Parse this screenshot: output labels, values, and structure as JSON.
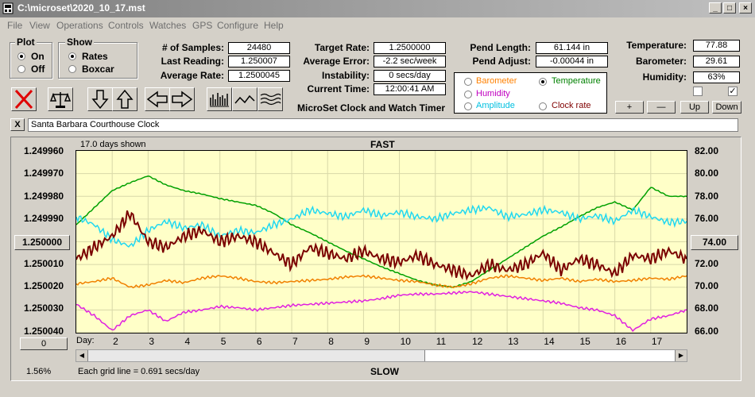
{
  "window": {
    "title": "C:\\microset\\2020_10_17.mst"
  },
  "menu": [
    "File",
    "View",
    "Operations",
    "Controls",
    "Watches",
    "GPS",
    "Configure",
    "Help"
  ],
  "plot_group": {
    "title": "Plot",
    "options": [
      {
        "label": "On",
        "selected": true
      },
      {
        "label": "Off",
        "selected": false
      }
    ]
  },
  "show_group": {
    "title": "Show",
    "options": [
      {
        "label": "Rates",
        "selected": true
      },
      {
        "label": "Boxcar",
        "selected": false
      }
    ]
  },
  "stats": {
    "samples_label": "# of Samples:",
    "samples": "24480",
    "last_reading_label": "Last Reading:",
    "last_reading": "1.250007",
    "average_rate_label": "Average Rate:",
    "average_rate": "1.2500045",
    "target_rate_label": "Target Rate:",
    "target_rate": "1.2500000",
    "average_error_label": "Average Error:",
    "average_error": "-2.2 sec/week",
    "instability_label": "Instability:",
    "instability": "0 secs/day",
    "current_time_label": "Current Time:",
    "current_time": "12:00:41 AM",
    "pend_length_label": "Pend Length:",
    "pend_length": "61.144 in",
    "pend_adjust_label": "Pend Adjust:",
    "pend_adjust": "-0.00044 in",
    "temperature_label": "Temperature:",
    "temperature": "77.88",
    "barometer_label": "Barometer:",
    "barometer": "29.61",
    "humidity_label": "Humidity:",
    "humidity": "63%"
  },
  "app_caption": "MicroSet Clock and Watch Timer",
  "overlay_options": [
    {
      "label": "Barometer",
      "color": "#ff8000",
      "selected": false
    },
    {
      "label": "Temperature",
      "color": "#008000",
      "selected": true
    },
    {
      "label": "Humidity",
      "color": "#c000c0",
      "selected": false
    },
    {
      "label": "Amplitude",
      "color": "#00c0e0",
      "selected": false
    },
    {
      "label": "Clock rate",
      "color": "#800000",
      "selected": false
    }
  ],
  "scale_buttons": {
    "plus": "+",
    "minus": "—",
    "up": "Up",
    "down": "Down"
  },
  "clock_name": "Santa Barbara Courthouse Clock",
  "close_x": "X",
  "chart_header": {
    "days_shown": "17.0 days shown",
    "fast": "FAST",
    "slow": "SLOW",
    "day_label": "Day:",
    "grid_note": "Each grid line = 0.691 secs/day"
  },
  "left_center_button": "1.250000",
  "right_center_button": "74.00",
  "zero_button": "0",
  "percent": "1.56%",
  "chart_data": {
    "type": "line",
    "y_left_ticks": [
      "1.249960",
      "1.249970",
      "1.249980",
      "1.249990",
      "1.250000",
      "1.250010",
      "1.250020",
      "1.250030",
      "1.250040"
    ],
    "y_right_ticks": [
      "82.00",
      "80.00",
      "78.00",
      "76.00",
      "74.00",
      "72.00",
      "70.00",
      "68.00",
      "66.00"
    ],
    "x_ticks": [
      "2",
      "3",
      "4",
      "5",
      "6",
      "7",
      "8",
      "9",
      "10",
      "11",
      "12",
      "13",
      "14",
      "15",
      "16",
      "17"
    ],
    "xlim": [
      1,
      18
    ],
    "y_left_range": [
      1.24996,
      1.25004
    ],
    "y_right_range": [
      66,
      82
    ],
    "grid": true,
    "series": [
      {
        "name": "Temperature",
        "color": "#00a000",
        "x": [
          1,
          1.5,
          2,
          2.5,
          3,
          3.5,
          4,
          4.5,
          5,
          5.5,
          6,
          6.5,
          7,
          7.5,
          8,
          8.5,
          9,
          9.5,
          10,
          10.5,
          11,
          11.5,
          12,
          12.5,
          13,
          13.5,
          14,
          14.5,
          15,
          15.5,
          16,
          16.5,
          17,
          17.5,
          18
        ],
        "y": [
          75.5,
          77,
          78.5,
          79.2,
          79.8,
          79.0,
          78.5,
          78.2,
          77.8,
          77.5,
          77.2,
          76.5,
          75.5,
          74.8,
          74.0,
          73.2,
          72.5,
          71.8,
          71.2,
          70.6,
          70.2,
          70.0,
          70.5,
          71.5,
          72.5,
          73.5,
          74.5,
          75.3,
          76.2,
          77.0,
          77.5,
          76.8,
          78.8,
          78.0,
          78.0
        ]
      },
      {
        "name": "Amplitude",
        "color": "#20d8f0",
        "x": [
          1,
          1.5,
          2,
          2.5,
          3,
          3.5,
          4,
          4.5,
          5,
          5.5,
          6,
          6.5,
          7,
          7.5,
          8,
          8.5,
          9,
          9.5,
          10,
          10.5,
          11,
          11.5,
          12,
          12.5,
          13,
          13.5,
          14,
          14.5,
          15,
          15.5,
          16,
          16.5,
          17,
          17.5,
          18
        ],
        "y": [
          76.2,
          75.5,
          74.2,
          73.6,
          75.0,
          75.8,
          75.2,
          75.5,
          74.5,
          75.0,
          74.8,
          75.5,
          76.0,
          76.8,
          76.5,
          76.2,
          76.8,
          76.3,
          76.6,
          76.2,
          76.0,
          76.5,
          76.8,
          77.0,
          76.2,
          76.4,
          76.8,
          76.6,
          76.0,
          76.3,
          75.8,
          76.8,
          76.2,
          75.7,
          75.8
        ]
      },
      {
        "name": "Clock rate",
        "color": "#7a0000",
        "x": [
          1,
          1.5,
          2,
          2.5,
          3,
          3.5,
          4,
          4.5,
          5,
          5.5,
          6,
          6.5,
          7,
          7.5,
          8,
          8.5,
          9,
          9.5,
          10,
          10.5,
          11,
          11.5,
          12,
          12.5,
          13,
          13.5,
          14,
          14.5,
          15,
          15.5,
          16,
          16.5,
          17,
          17.5,
          18
        ],
        "y": [
          72.5,
          73.5,
          74.5,
          76.5,
          74.0,
          73.5,
          74.5,
          75.0,
          74.0,
          74.5,
          74.0,
          73.0,
          72.0,
          73.5,
          73.0,
          72.5,
          73.2,
          72.5,
          72.2,
          72.8,
          72.0,
          71.5,
          71.0,
          72.0,
          71.5,
          72.0,
          73.0,
          71.5,
          72.5,
          72.0,
          71.2,
          72.8,
          72.5,
          73.2,
          72.5
        ]
      },
      {
        "name": "Barometer",
        "color": "#f08000",
        "x": [
          1,
          1.5,
          2,
          2.5,
          3,
          3.5,
          4,
          4.5,
          5,
          5.5,
          6,
          6.5,
          7,
          7.5,
          8,
          8.5,
          9,
          9.5,
          10,
          10.5,
          11,
          11.5,
          12,
          12.5,
          13,
          13.5,
          14,
          14.5,
          15,
          15.5,
          16,
          16.5,
          17,
          17.5,
          18
        ],
        "y": [
          70.3,
          70.5,
          70.8,
          70.0,
          70.2,
          70.6,
          70.4,
          70.8,
          71.0,
          70.8,
          70.5,
          70.4,
          70.5,
          70.6,
          70.7,
          70.9,
          71.0,
          70.8,
          70.6,
          70.5,
          70.2,
          70.0,
          70.3,
          70.8,
          71.0,
          70.8,
          70.6,
          70.8,
          70.5,
          70.7,
          70.5,
          70.6,
          70.8,
          70.7,
          71.0
        ]
      },
      {
        "name": "Humidity",
        "color": "#e020e0",
        "x": [
          1,
          1.5,
          2,
          2.5,
          3,
          3.5,
          4,
          4.5,
          5,
          5.5,
          6,
          6.5,
          7,
          7.5,
          8,
          8.5,
          9,
          9.5,
          10,
          10.5,
          11,
          11.5,
          12,
          12.5,
          13,
          13.5,
          14,
          14.5,
          15,
          15.5,
          16,
          16.5,
          17,
          17.5,
          18
        ],
        "y": [
          68.5,
          67.5,
          66.2,
          67.5,
          68.0,
          67.0,
          67.8,
          68.0,
          68.3,
          68.2,
          68.0,
          68.2,
          68.4,
          68.5,
          68.6,
          68.7,
          68.8,
          69.0,
          69.3,
          69.4,
          69.4,
          69.5,
          69.6,
          69.4,
          69.2,
          69.0,
          68.8,
          68.6,
          68.2,
          68.0,
          67.5,
          66.2,
          67.2,
          67.5,
          68.0
        ]
      }
    ]
  }
}
